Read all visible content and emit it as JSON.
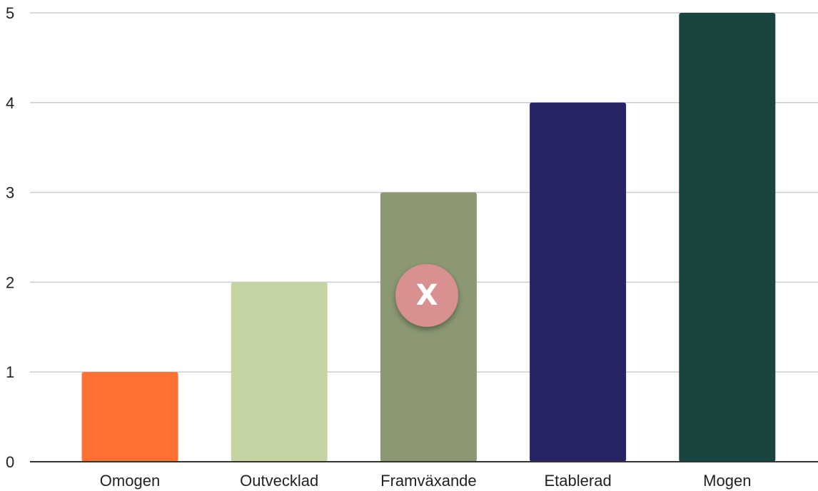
{
  "chart_data": {
    "type": "bar",
    "categories": [
      "Omogen",
      "Outvecklad",
      "Framväxande",
      "Etablerad",
      "Mogen"
    ],
    "values": [
      1,
      2,
      3,
      4,
      5
    ],
    "colors": [
      "#ff7033",
      "#c4d5a3",
      "#8b9873",
      "#262465",
      "#184540"
    ],
    "title": "",
    "xlabel": "",
    "ylabel": "",
    "ylim": [
      0,
      5
    ],
    "yticks": [
      "0",
      "1",
      "2",
      "3",
      "4",
      "5"
    ],
    "grid": true,
    "legend": "none"
  },
  "marker": {
    "label": "X",
    "color": "#d99090",
    "category": "Framväxande"
  }
}
